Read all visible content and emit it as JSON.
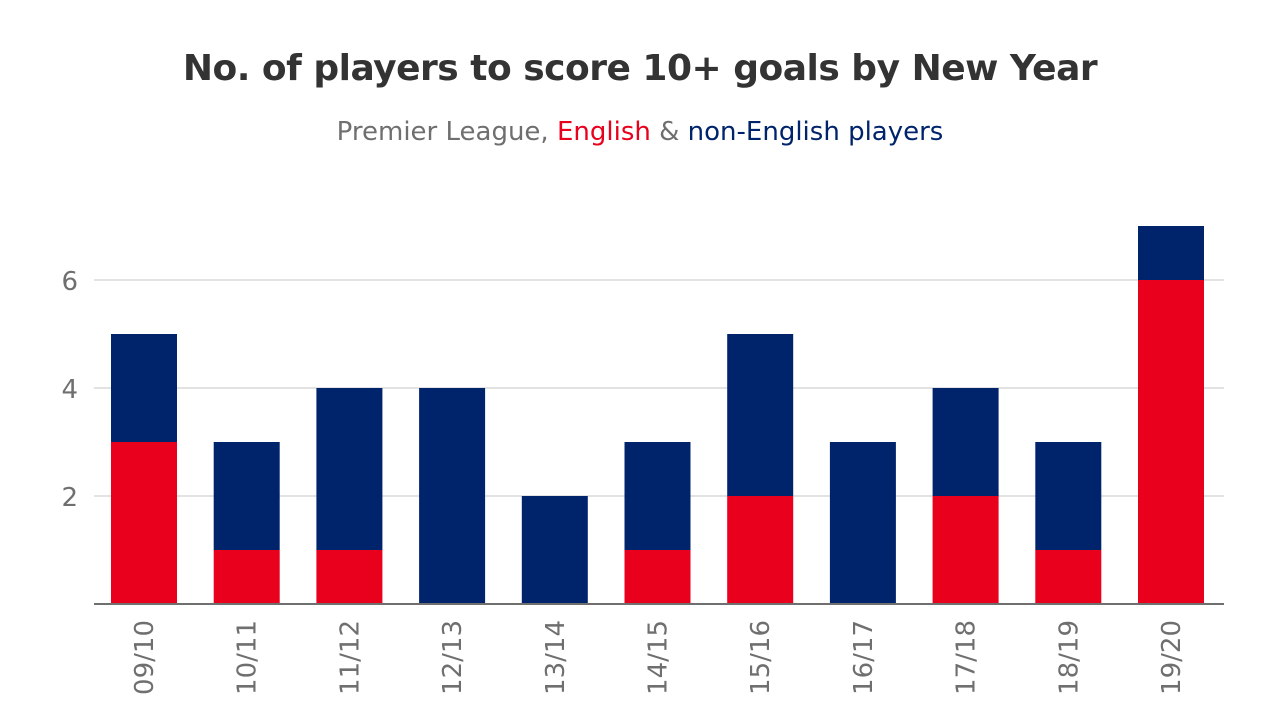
{
  "chart_data": {
    "type": "bar",
    "stacked": true,
    "title": "No. of players to score 10+ goals by New Year",
    "subtitle": {
      "part1": "Premier League, ",
      "part2": "English",
      "part3": " & ",
      "part4": "non-English players"
    },
    "categories": [
      "09/10",
      "10/11",
      "11/12",
      "12/13",
      "13/14",
      "14/15",
      "15/16",
      "16/17",
      "17/18",
      "18/19",
      "19/20"
    ],
    "series": [
      {
        "name": "English",
        "color": "#e8001d",
        "values": [
          3,
          1,
          1,
          0,
          0,
          1,
          2,
          0,
          2,
          1,
          6
        ]
      },
      {
        "name": "non-English players",
        "color": "#00246b",
        "values": [
          2,
          2,
          3,
          4,
          2,
          2,
          3,
          3,
          2,
          2,
          1
        ]
      }
    ],
    "ylim": [
      0,
      7
    ],
    "yticks": [
      2,
      4,
      6
    ],
    "grid": true,
    "legend": "none (colored words in subtitle)"
  }
}
